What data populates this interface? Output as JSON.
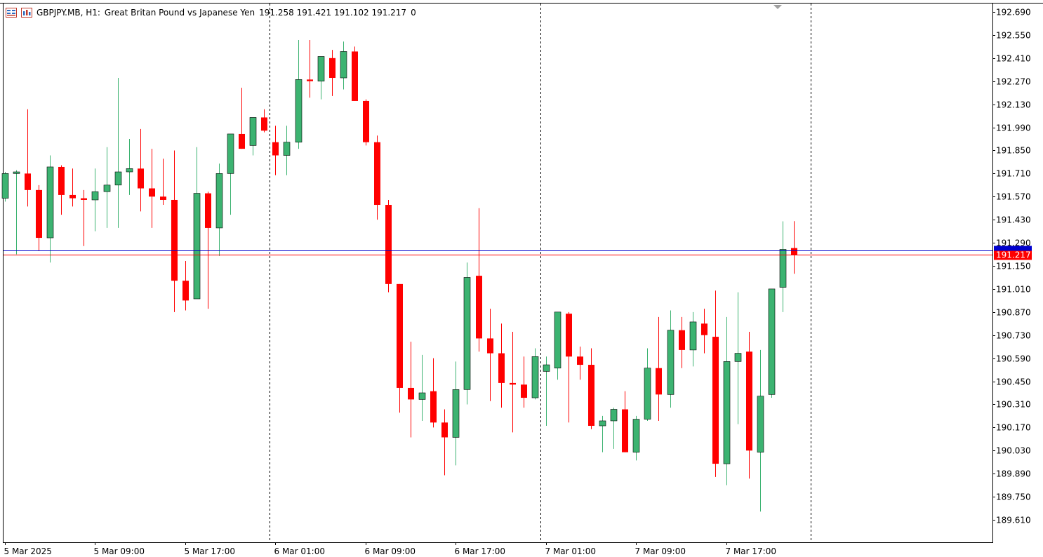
{
  "header": {
    "symbol": "GBPJPY.MB",
    "timeframe": "H1:",
    "description": "Great Britan Pound vs Japanese Yen",
    "ohlc": "191.258 191.421 191.102 191.217",
    "extra": "0"
  },
  "icons": [
    "chart-window-icon",
    "symbol-chart-icon"
  ],
  "colors": {
    "bull": "#3cb371",
    "bear": "#ff0000",
    "frame": "#000000",
    "bid_line": "#ff0000",
    "ask_line": "#0000cd",
    "separator": "#000000"
  },
  "price_labels": {
    "ask": {
      "value": 191.242,
      "text": ""
    },
    "bid": {
      "value": 191.217,
      "text": "191.217"
    }
  },
  "chart_data": {
    "type": "candlestick",
    "title": "GBPJPY.MB, H1:  Great Britan Pound vs Japanese Yen",
    "ylim": [
      189.51,
      192.74
    ],
    "y_ticks": [
      "192.690",
      "192.550",
      "192.410",
      "192.270",
      "192.130",
      "191.990",
      "191.850",
      "191.710",
      "191.570",
      "191.430",
      "191.290",
      "191.150",
      "191.010",
      "190.870",
      "190.730",
      "190.590",
      "190.450",
      "190.310",
      "190.170",
      "190.030",
      "189.890",
      "189.750",
      "189.610"
    ],
    "x_ticks": [
      {
        "label": "5 Mar 2025",
        "index": 0
      },
      {
        "label": "5 Mar 09:00",
        "index": 8
      },
      {
        "label": "5 Mar 17:00",
        "index": 16
      },
      {
        "label": "6 Mar 01:00",
        "index": 24
      },
      {
        "label": "6 Mar 09:00",
        "index": 32
      },
      {
        "label": "6 Mar 17:00",
        "index": 40
      },
      {
        "label": "7 Mar 01:00",
        "index": 48
      },
      {
        "label": "7 Mar 09:00",
        "index": 56
      },
      {
        "label": "7 Mar 17:00",
        "index": 64
      }
    ],
    "day_separators": [
      23,
      47,
      71
    ],
    "candles": [
      {
        "t": "5 Mar 01:00",
        "o": 191.56,
        "h": 191.72,
        "l": 191.54,
        "c": 191.71
      },
      {
        "t": "5 Mar 02:00",
        "o": 191.71,
        "h": 191.73,
        "l": 191.22,
        "c": 191.72
      },
      {
        "t": "5 Mar 03:00",
        "o": 191.71,
        "h": 192.1,
        "l": 191.51,
        "c": 191.61
      },
      {
        "t": "5 Mar 04:00",
        "o": 191.61,
        "h": 191.64,
        "l": 191.24,
        "c": 191.32
      },
      {
        "t": "5 Mar 05:00",
        "o": 191.32,
        "h": 191.82,
        "l": 191.17,
        "c": 191.75
      },
      {
        "t": "5 Mar 06:00",
        "o": 191.75,
        "h": 191.76,
        "l": 191.46,
        "c": 191.58
      },
      {
        "t": "5 Mar 07:00",
        "o": 191.58,
        "h": 191.74,
        "l": 191.51,
        "c": 191.56
      },
      {
        "t": "5 Mar 08:00",
        "o": 191.56,
        "h": 191.61,
        "l": 191.27,
        "c": 191.55
      },
      {
        "t": "5 Mar 09:00",
        "o": 191.55,
        "h": 191.74,
        "l": 191.36,
        "c": 191.6
      },
      {
        "t": "5 Mar 10:00",
        "o": 191.6,
        "h": 191.87,
        "l": 191.38,
        "c": 191.64
      },
      {
        "t": "5 Mar 11:00",
        "o": 191.64,
        "h": 192.29,
        "l": 191.38,
        "c": 191.72
      },
      {
        "t": "5 Mar 12:00",
        "o": 191.72,
        "h": 191.92,
        "l": 191.58,
        "c": 191.74
      },
      {
        "t": "5 Mar 13:00",
        "o": 191.74,
        "h": 191.98,
        "l": 191.48,
        "c": 191.62
      },
      {
        "t": "5 Mar 14:00",
        "o": 191.62,
        "h": 191.86,
        "l": 191.38,
        "c": 191.57
      },
      {
        "t": "5 Mar 15:00",
        "o": 191.57,
        "h": 191.8,
        "l": 191.52,
        "c": 191.55
      },
      {
        "t": "5 Mar 16:00",
        "o": 191.55,
        "h": 191.85,
        "l": 190.87,
        "c": 191.06
      },
      {
        "t": "5 Mar 17:00",
        "o": 191.06,
        "h": 191.18,
        "l": 190.88,
        "c": 190.94
      },
      {
        "t": "5 Mar 18:00",
        "o": 190.95,
        "h": 191.87,
        "l": 190.95,
        "c": 191.59
      },
      {
        "t": "5 Mar 19:00",
        "o": 191.59,
        "h": 191.6,
        "l": 190.89,
        "c": 191.38
      },
      {
        "t": "5 Mar 20:00",
        "o": 191.38,
        "h": 191.77,
        "l": 191.21,
        "c": 191.71
      },
      {
        "t": "5 Mar 21:00",
        "o": 191.71,
        "h": 191.95,
        "l": 191.46,
        "c": 191.95
      },
      {
        "t": "5 Mar 22:00",
        "o": 191.95,
        "h": 192.23,
        "l": 191.86,
        "c": 191.86
      },
      {
        "t": "5 Mar 23:00",
        "o": 191.88,
        "h": 192.05,
        "l": 191.82,
        "c": 192.05
      },
      {
        "t": "6 Mar 00:00",
        "o": 192.05,
        "h": 192.1,
        "l": 191.96,
        "c": 191.97
      },
      {
        "t": "6 Mar 01:00",
        "o": 191.9,
        "h": 192.0,
        "l": 191.7,
        "c": 191.82
      },
      {
        "t": "6 Mar 02:00",
        "o": 191.82,
        "h": 192.0,
        "l": 191.7,
        "c": 191.9
      },
      {
        "t": "6 Mar 03:00",
        "o": 191.9,
        "h": 192.52,
        "l": 191.86,
        "c": 192.28
      },
      {
        "t": "6 Mar 04:00",
        "o": 192.28,
        "h": 192.52,
        "l": 192.17,
        "c": 192.27
      },
      {
        "t": "6 Mar 05:00",
        "o": 192.27,
        "h": 192.42,
        "l": 192.16,
        "c": 192.42
      },
      {
        "t": "6 Mar 06:00",
        "o": 192.41,
        "h": 192.46,
        "l": 192.18,
        "c": 192.29
      },
      {
        "t": "6 Mar 07:00",
        "o": 192.29,
        "h": 192.51,
        "l": 192.22,
        "c": 192.45
      },
      {
        "t": "6 Mar 08:00",
        "o": 192.45,
        "h": 192.48,
        "l": 192.15,
        "c": 192.15
      },
      {
        "t": "6 Mar 09:00",
        "o": 192.15,
        "h": 192.16,
        "l": 191.88,
        "c": 191.9
      },
      {
        "t": "6 Mar 10:00",
        "o": 191.9,
        "h": 191.94,
        "l": 191.43,
        "c": 191.52
      },
      {
        "t": "6 Mar 11:00",
        "o": 191.52,
        "h": 191.55,
        "l": 190.99,
        "c": 191.04
      },
      {
        "t": "6 Mar 12:00",
        "o": 191.04,
        "h": 191.04,
        "l": 190.26,
        "c": 190.41
      },
      {
        "t": "6 Mar 13:00",
        "o": 190.41,
        "h": 190.69,
        "l": 190.11,
        "c": 190.34
      },
      {
        "t": "6 Mar 14:00",
        "o": 190.34,
        "h": 190.61,
        "l": 190.21,
        "c": 190.38
      },
      {
        "t": "6 Mar 15:00",
        "o": 190.39,
        "h": 190.59,
        "l": 190.17,
        "c": 190.2
      },
      {
        "t": "6 Mar 16:00",
        "o": 190.2,
        "h": 190.28,
        "l": 189.88,
        "c": 190.11
      },
      {
        "t": "6 Mar 17:00",
        "o": 190.11,
        "h": 190.57,
        "l": 189.94,
        "c": 190.4
      },
      {
        "t": "6 Mar 18:00",
        "o": 190.4,
        "h": 191.17,
        "l": 190.31,
        "c": 191.08
      },
      {
        "t": "6 Mar 19:00",
        "o": 191.09,
        "h": 191.5,
        "l": 190.63,
        "c": 190.71
      },
      {
        "t": "6 Mar 20:00",
        "o": 190.71,
        "h": 190.89,
        "l": 190.33,
        "c": 190.62
      },
      {
        "t": "6 Mar 21:00",
        "o": 190.62,
        "h": 190.8,
        "l": 190.29,
        "c": 190.44
      },
      {
        "t": "6 Mar 22:00",
        "o": 190.44,
        "h": 190.75,
        "l": 190.14,
        "c": 190.43
      },
      {
        "t": "6 Mar 23:00",
        "o": 190.43,
        "h": 190.6,
        "l": 190.29,
        "c": 190.35
      },
      {
        "t": "7 Mar 00:00",
        "o": 190.35,
        "h": 190.65,
        "l": 190.34,
        "c": 190.6
      },
      {
        "t": "7 Mar 01:00",
        "o": 190.51,
        "h": 190.6,
        "l": 190.18,
        "c": 190.55
      },
      {
        "t": "7 Mar 02:00",
        "o": 190.53,
        "h": 190.87,
        "l": 190.46,
        "c": 190.87
      },
      {
        "t": "7 Mar 03:00",
        "o": 190.86,
        "h": 190.87,
        "l": 190.2,
        "c": 190.6
      },
      {
        "t": "7 Mar 04:00",
        "o": 190.6,
        "h": 190.66,
        "l": 190.46,
        "c": 190.55
      },
      {
        "t": "7 Mar 05:00",
        "o": 190.55,
        "h": 190.65,
        "l": 190.16,
        "c": 190.18
      },
      {
        "t": "7 Mar 06:00",
        "o": 190.18,
        "h": 190.24,
        "l": 190.02,
        "c": 190.21
      },
      {
        "t": "7 Mar 07:00",
        "o": 190.21,
        "h": 190.29,
        "l": 190.04,
        "c": 190.28
      },
      {
        "t": "7 Mar 08:00",
        "o": 190.28,
        "h": 190.39,
        "l": 190.02,
        "c": 190.02
      },
      {
        "t": "7 Mar 09:00",
        "o": 190.02,
        "h": 190.24,
        "l": 189.97,
        "c": 190.22
      },
      {
        "t": "7 Mar 10:00",
        "o": 190.22,
        "h": 190.65,
        "l": 190.21,
        "c": 190.53
      },
      {
        "t": "7 Mar 11:00",
        "o": 190.53,
        "h": 190.84,
        "l": 190.21,
        "c": 190.37
      },
      {
        "t": "7 Mar 12:00",
        "o": 190.37,
        "h": 190.88,
        "l": 190.29,
        "c": 190.76
      },
      {
        "t": "7 Mar 13:00",
        "o": 190.76,
        "h": 190.84,
        "l": 190.53,
        "c": 190.64
      },
      {
        "t": "7 Mar 14:00",
        "o": 190.64,
        "h": 190.87,
        "l": 190.54,
        "c": 190.81
      },
      {
        "t": "7 Mar 15:00",
        "o": 190.8,
        "h": 190.89,
        "l": 190.62,
        "c": 190.73
      },
      {
        "t": "7 Mar 16:00",
        "o": 190.72,
        "h": 191.0,
        "l": 189.87,
        "c": 189.95
      },
      {
        "t": "7 Mar 17:00",
        "o": 189.95,
        "h": 190.84,
        "l": 189.82,
        "c": 190.57
      },
      {
        "t": "7 Mar 18:00",
        "o": 190.57,
        "h": 190.99,
        "l": 190.19,
        "c": 190.62
      },
      {
        "t": "7 Mar 19:00",
        "o": 190.63,
        "h": 190.75,
        "l": 189.86,
        "c": 190.03
      },
      {
        "t": "7 Mar 20:00",
        "o": 190.02,
        "h": 190.64,
        "l": 189.66,
        "c": 190.36
      },
      {
        "t": "7 Mar 21:00",
        "o": 190.37,
        "h": 191.01,
        "l": 190.35,
        "c": 191.01
      },
      {
        "t": "7 Mar 22:00",
        "o": 191.02,
        "h": 191.42,
        "l": 190.87,
        "c": 191.25
      },
      {
        "t": "7 Mar 23:00",
        "o": 191.258,
        "h": 191.421,
        "l": 191.102,
        "c": 191.217
      }
    ]
  }
}
